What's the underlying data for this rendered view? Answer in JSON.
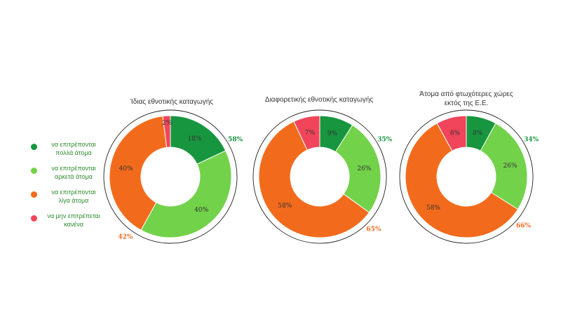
{
  "legend": [
    {
      "label_line1": "να επιτρέπονται",
      "label_line2": "πολλά άτομα",
      "color": "#17963f"
    },
    {
      "label_line1": "να επιτρέπονται",
      "label_line2": "αρκετά άτομα",
      "color": "#72d24a"
    },
    {
      "label_line1": "να επιτρέπονται",
      "label_line2": "λίγα άτομα",
      "color": "#f26b1c"
    },
    {
      "label_line1": "να μην επιτρέπεται",
      "label_line2": "κανένα",
      "color": "#f0455a"
    }
  ],
  "chart_data": [
    {
      "type": "pie",
      "subtype": "donut",
      "title_lines": [
        "Ίδιας εθνοτικής καταγωγής"
      ],
      "categories": [
        "να επιτρέπονται πολλά άτομα",
        "να επιτρέπονται αρκετά άτομα",
        "να επιτρέπονται λίγα άτομα",
        "να μην επιτρέπεται κανένα"
      ],
      "values": [
        18,
        40,
        40,
        2
      ],
      "slice_labels": [
        "18%",
        "40%",
        "40%",
        "2%"
      ],
      "group_labels": [
        {
          "text": "58%",
          "covers": [
            0,
            1
          ],
          "color": "#17963f"
        },
        {
          "text": "42%",
          "covers": [
            2,
            3
          ],
          "color": "#f26b1c"
        }
      ]
    },
    {
      "type": "pie",
      "subtype": "donut",
      "title_lines": [
        "Διαφορετικής εθνοτικής καταγωγής"
      ],
      "categories": [
        "να επιτρέπονται πολλά άτομα",
        "να επιτρέπονται αρκετά άτομα",
        "να επιτρέπονται λίγα άτομα",
        "να μην επιτρέπεται κανένα"
      ],
      "values": [
        9,
        26,
        58,
        7
      ],
      "slice_labels": [
        "9%",
        "26%",
        "58%",
        "7%"
      ],
      "group_labels": [
        {
          "text": "35%",
          "covers": [
            0,
            1
          ],
          "color": "#17963f"
        },
        {
          "text": "65%",
          "covers": [
            2,
            3
          ],
          "color": "#f26b1c"
        }
      ]
    },
    {
      "type": "pie",
      "subtype": "donut",
      "title_lines": [
        "Άτομα από φτωχότερες χώρες",
        "εκτός της Ε.Ε."
      ],
      "categories": [
        "να επιτρέπονται πολλά άτομα",
        "να επιτρέπονται αρκετά άτομα",
        "να επιτρέπονται λίγα άτομα",
        "να μην επιτρέπεται κανένα"
      ],
      "values": [
        8,
        26,
        58,
        8
      ],
      "slice_labels": [
        "8%",
        "26%",
        "58%",
        "8%"
      ],
      "group_labels": [
        {
          "text": "34%",
          "covers": [
            0,
            1
          ],
          "color": "#17963f"
        },
        {
          "text": "66%",
          "covers": [
            2,
            3
          ],
          "color": "#f26b1c"
        }
      ]
    }
  ]
}
